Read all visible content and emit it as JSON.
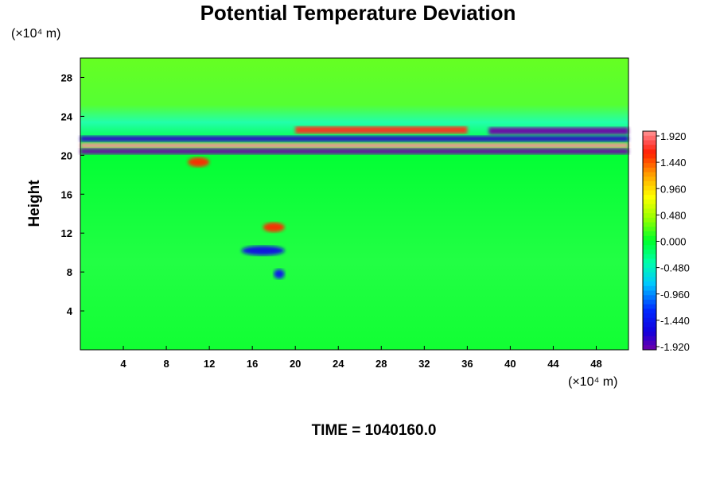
{
  "chart_data": {
    "type": "heatmap",
    "title": "Potential Temperature Deviation",
    "ylabel": "Height",
    "x_unit_label": "(×10⁴ m)",
    "y_unit_label": "(×10⁴ m)",
    "xlim": [
      0,
      51
    ],
    "ylim": [
      0,
      30
    ],
    "x_ticks": [
      4,
      8,
      12,
      16,
      20,
      24,
      28,
      32,
      36,
      40,
      44,
      48
    ],
    "y_ticks": [
      4,
      8,
      12,
      16,
      20,
      24,
      28
    ],
    "colorbar": {
      "min": -1.92,
      "max": 1.92,
      "labels": [
        "1.920",
        "1.440",
        "0.960",
        "0.480",
        "0.000",
        "-0.480",
        "-0.960",
        "-1.440",
        "-1.920"
      ]
    },
    "features": [
      {
        "x": [
          0,
          51
        ],
        "y": 21.0,
        "value": 1.92
      },
      {
        "x": [
          0,
          51
        ],
        "y": 20.4,
        "value": -1.92
      },
      {
        "x": [
          0,
          51
        ],
        "y": 21.7,
        "value": -1.7
      },
      {
        "x": [
          38,
          51
        ],
        "y": 22.5,
        "value": -1.92
      },
      {
        "x": [
          20,
          36
        ],
        "y": 22.6,
        "value": 1.6
      },
      {
        "x": [
          10,
          12
        ],
        "y": 19.3,
        "value": 1.5
      },
      {
        "x": [
          17,
          19
        ],
        "y": 12.6,
        "value": 1.5
      },
      {
        "x": [
          15,
          19
        ],
        "y": 10.2,
        "value": -1.5
      },
      {
        "x": [
          18,
          19
        ],
        "y": 7.8,
        "value": -1.4
      }
    ]
  },
  "time_label": "TIME = 1040160.0"
}
